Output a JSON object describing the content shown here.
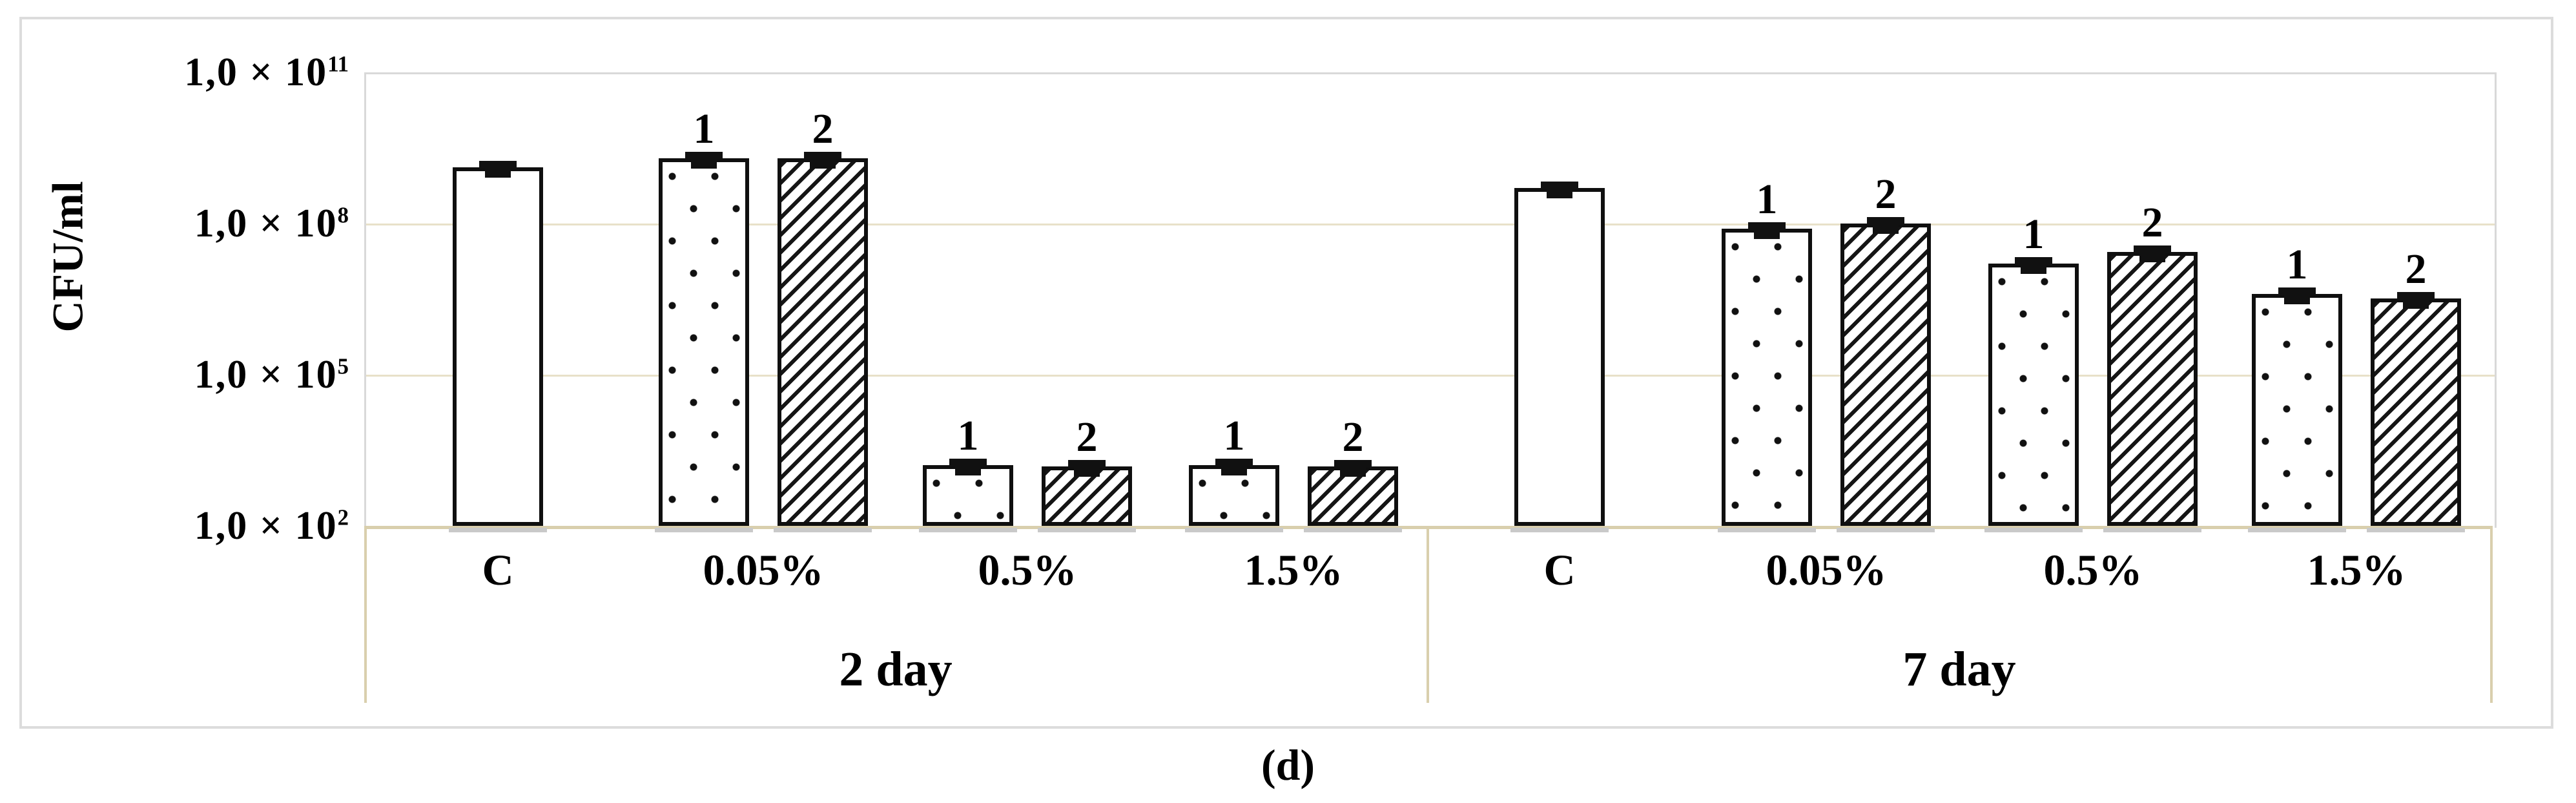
{
  "figure": {
    "caption": "(d)"
  },
  "chart_data": {
    "type": "bar",
    "title": "",
    "xlabel": "",
    "ylabel": "CFU/ml",
    "y_axis": {
      "label": "CFU/ml",
      "scale": "log",
      "ylim": [
        100.0,
        100000000000.0
      ],
      "gridlines": true,
      "ticks": [
        {
          "base": "1,0 × 10",
          "exp": "11"
        },
        {
          "base": "1,0 × 10",
          "exp": "8"
        },
        {
          "base": "1,0 × 10",
          "exp": "5"
        },
        {
          "base": "1,0 × 10",
          "exp": "2"
        }
      ]
    },
    "series_legend": [
      {
        "id": "1",
        "pattern": "dots"
      },
      {
        "id": "2",
        "pattern": "stripes"
      }
    ],
    "error_bars": true,
    "groups": [
      {
        "label": "2 day",
        "categories": [
          {
            "label": "C",
            "bars": [
              {
                "series": "",
                "pattern": "plain",
                "value": 1300000000.0
              }
            ]
          },
          {
            "label": "0.05%",
            "bars": [
              {
                "series": "1",
                "pattern": "dots",
                "value": 2000000000.0
              },
              {
                "series": "2",
                "pattern": "stripes",
                "value": 2000000000.0
              }
            ]
          },
          {
            "label": "0.5%",
            "bars": [
              {
                "series": "1",
                "pattern": "dots",
                "value": 1600.0
              },
              {
                "series": "2",
                "pattern": "stripes",
                "value": 1500.0
              }
            ]
          },
          {
            "label": "1.5%",
            "bars": [
              {
                "series": "1",
                "pattern": "dots",
                "value": 1600.0
              },
              {
                "series": "2",
                "pattern": "stripes",
                "value": 1500.0
              }
            ]
          }
        ]
      },
      {
        "label": "7 day",
        "categories": [
          {
            "label": "C",
            "bars": [
              {
                "series": "",
                "pattern": "plain",
                "value": 500000000.0
              }
            ]
          },
          {
            "label": "0.05%",
            "bars": [
              {
                "series": "1",
                "pattern": "dots",
                "value": 80000000.0
              },
              {
                "series": "2",
                "pattern": "stripes",
                "value": 100000000.0
              }
            ]
          },
          {
            "label": "0.5%",
            "bars": [
              {
                "series": "1",
                "pattern": "dots",
                "value": 16000000.0
              },
              {
                "series": "2",
                "pattern": "stripes",
                "value": 27000000.0
              }
            ]
          },
          {
            "label": "1.5%",
            "bars": [
              {
                "series": "1",
                "pattern": "dots",
                "value": 4000000.0
              },
              {
                "series": "2",
                "pattern": "stripes",
                "value": 3300000.0
              }
            ]
          }
        ]
      }
    ],
    "colors": {
      "bar_border": "#0f0f0f",
      "gridline": "#e8e1c9",
      "axis_line": "#d9cfad",
      "chart_border": "#dcdcdc",
      "text": "#000000"
    }
  }
}
